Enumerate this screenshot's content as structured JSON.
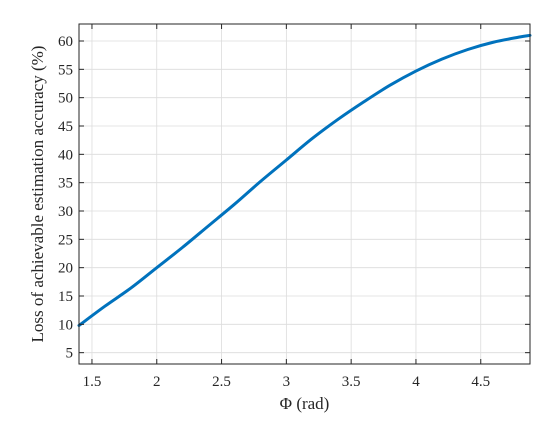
{
  "chart_data": {
    "type": "line",
    "title": "",
    "xlabel": "Φ (rad)",
    "ylabel": "Loss of achievable estimation accuracy (%)",
    "xlim": [
      1.4,
      4.88
    ],
    "ylim": [
      3,
      63
    ],
    "xticks": [
      1.5,
      2,
      2.5,
      3,
      3.5,
      4,
      4.5
    ],
    "xtick_labels": [
      "1.5",
      "2",
      "2.5",
      "3",
      "3.5",
      "4",
      "4.5"
    ],
    "yticks": [
      5,
      10,
      15,
      20,
      25,
      30,
      35,
      40,
      45,
      50,
      55,
      60
    ],
    "ytick_labels": [
      "5",
      "10",
      "15",
      "20",
      "25",
      "30",
      "35",
      "40",
      "45",
      "50",
      "55",
      "60"
    ],
    "grid": true,
    "legend": "none",
    "series_color": "#0072bd",
    "series": [
      {
        "x": [
          1.4,
          1.6,
          1.8,
          2.0,
          2.2,
          2.4,
          2.6,
          2.8,
          3.0,
          3.2,
          3.4,
          3.6,
          3.8,
          4.0,
          4.2,
          4.4,
          4.6,
          4.8,
          4.88
        ],
        "y": [
          9.8,
          13.2,
          16.4,
          20.0,
          23.6,
          27.4,
          31.2,
          35.2,
          39.0,
          42.8,
          46.2,
          49.3,
          52.2,
          54.7,
          56.8,
          58.5,
          59.8,
          60.7,
          61.0
        ]
      }
    ]
  }
}
